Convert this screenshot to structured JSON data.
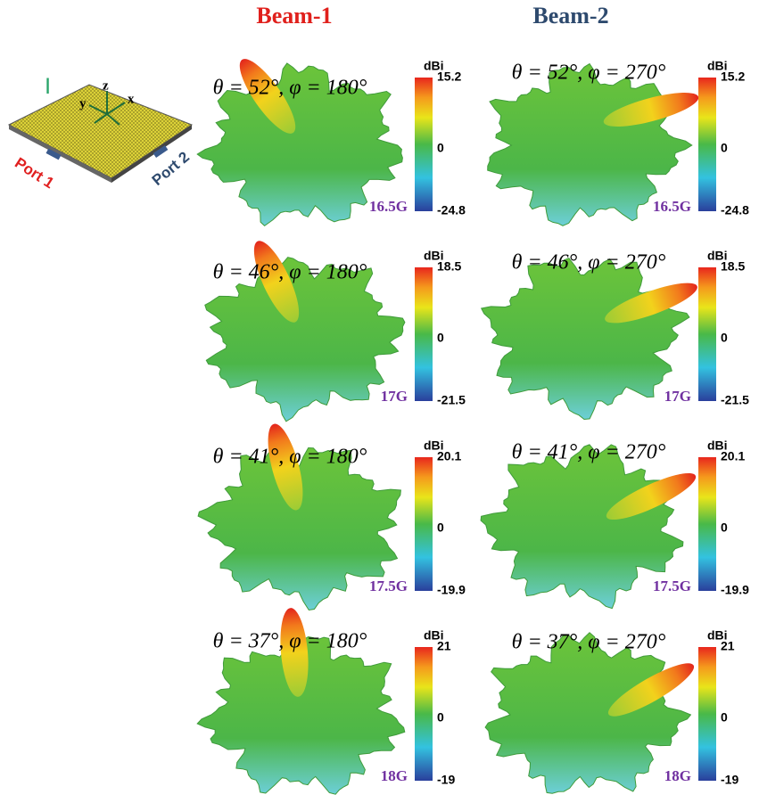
{
  "header": {
    "beam1": "Beam-1",
    "beam2": "Beam-2"
  },
  "antenna": {
    "label": "I",
    "axis_z": "z",
    "axis_y": "y",
    "axis_x": "x",
    "port1": "Port 1",
    "port2": "Port 2"
  },
  "panels": [
    {
      "angle": "θ = 52°, φ = 180°",
      "unit": "dBi",
      "max": 15.2,
      "mid": 0,
      "min": -24.8,
      "freq": "16.5G"
    },
    {
      "angle": "θ = 52°, φ = 270°",
      "unit": "dBi",
      "max": 15.2,
      "mid": 0,
      "min": -24.8,
      "freq": "16.5G"
    },
    {
      "angle": "θ = 46°, φ = 180°",
      "unit": "dBi",
      "max": 18.5,
      "mid": 0,
      "min": -21.5,
      "freq": "17G"
    },
    {
      "angle": "θ = 46°, φ = 270°",
      "unit": "dBi",
      "max": 18.5,
      "mid": 0,
      "min": -21.5,
      "freq": "17G"
    },
    {
      "angle": "θ = 41°, φ = 180°",
      "unit": "dBi",
      "max": 20.1,
      "mid": 0,
      "min": -19.9,
      "freq": "17.5G"
    },
    {
      "angle": "θ = 41°, φ = 270°",
      "unit": "dBi",
      "max": 20.1,
      "mid": 0,
      "min": -19.9,
      "freq": "17.5G"
    },
    {
      "angle": "θ = 37°, φ = 180°",
      "unit": "dBi",
      "max": 21,
      "mid": 0,
      "min": -19,
      "freq": "18G"
    },
    {
      "angle": "θ = 37°, φ = 270°",
      "unit": "dBi",
      "max": 21,
      "mid": 0,
      "min": -19,
      "freq": "18G"
    }
  ]
}
